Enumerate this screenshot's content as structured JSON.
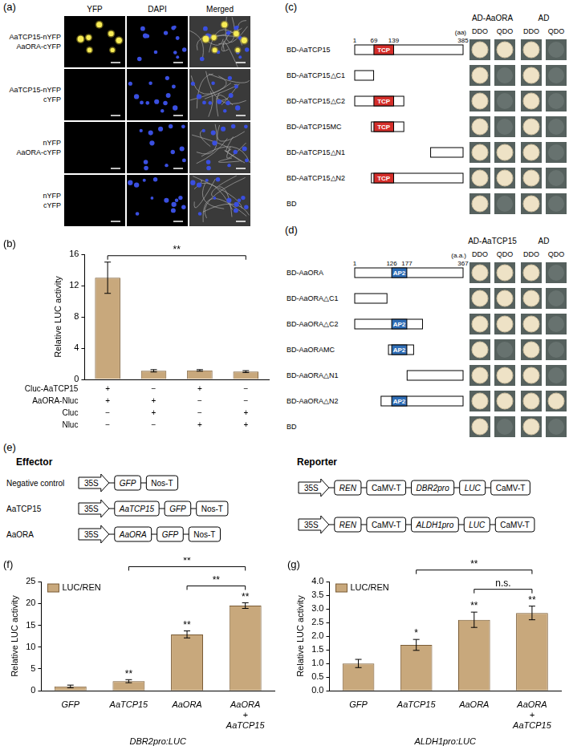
{
  "figure": {
    "panel_a": {
      "panel_label": "(a)",
      "columns": [
        "YFP",
        "DAPI",
        "Merged"
      ],
      "rows": [
        {
          "labels": [
            "AaTCP15-nYFP",
            "AaORA-cYFP"
          ],
          "yfp_signal": true
        },
        {
          "labels": [
            "AaTCP15-nYFP",
            "cYFP"
          ],
          "yfp_signal": false
        },
        {
          "labels": [
            "nYFP",
            "AaORA-cYFP"
          ],
          "yfp_signal": false
        },
        {
          "labels": [
            "nYFP",
            "cYFP"
          ],
          "yfp_signal": false
        }
      ]
    },
    "panel_c": {
      "panel_label": "(c)",
      "scale_unit": "(aa)",
      "protein_length": 385,
      "domain": {
        "name": "TCP",
        "start": 69,
        "end": 139,
        "color": "#d42e2a"
      },
      "position_labels": [
        1,
        69,
        139,
        385
      ],
      "prey_columns": [
        {
          "name": "AD-AaORA",
          "media": [
            "DDO",
            "QDO"
          ]
        },
        {
          "name": "AD",
          "media": [
            "DDO",
            "QDO"
          ]
        }
      ],
      "constructs": [
        {
          "name": "BD-AaTCP15",
          "start": 1,
          "end": 385,
          "growth": [
            true,
            true,
            true,
            false
          ]
        },
        {
          "name": "BD-AaTCP15△C1",
          "start": 1,
          "end": 68,
          "growth": [
            true,
            false,
            true,
            false
          ]
        },
        {
          "name": "BD-AaTCP15△C2",
          "start": 1,
          "end": 175,
          "growth": [
            true,
            false,
            true,
            false
          ]
        },
        {
          "name": "BD-AaTCP15MC",
          "start": 60,
          "end": 175,
          "growth": [
            true,
            false,
            true,
            false
          ]
        },
        {
          "name": "BD-AaTCP15△N1",
          "start": 270,
          "end": 385,
          "growth": [
            true,
            true,
            true,
            false
          ]
        },
        {
          "name": "BD-AaTCP15△N2",
          "start": 60,
          "end": 385,
          "growth": [
            true,
            true,
            true,
            false
          ]
        },
        {
          "name": "BD",
          "start": null,
          "end": null,
          "growth": [
            true,
            false,
            true,
            false
          ]
        }
      ]
    },
    "panel_d": {
      "panel_label": "(d)",
      "scale_unit": "(a.a.)",
      "protein_length": 367,
      "domain": {
        "name": "AP2",
        "start": 126,
        "end": 177,
        "color": "#2f6db5"
      },
      "position_labels": [
        1,
        126,
        177,
        367
      ],
      "prey_columns": [
        {
          "name": "AD-AaTCP15",
          "media": [
            "DDO",
            "QDO"
          ]
        },
        {
          "name": "AD",
          "media": [
            "DDO",
            "QDO"
          ]
        }
      ],
      "constructs": [
        {
          "name": "BD-AaORA",
          "start": 1,
          "end": 367,
          "growth": [
            true,
            true,
            true,
            false
          ]
        },
        {
          "name": "BD-AaORA△C1",
          "start": 1,
          "end": 110,
          "growth": [
            true,
            true,
            true,
            false
          ]
        },
        {
          "name": "BD-AaORA△C2",
          "start": 1,
          "end": 230,
          "growth": [
            true,
            true,
            true,
            false
          ]
        },
        {
          "name": "BD-AaORAMC",
          "start": 115,
          "end": 200,
          "growth": [
            true,
            false,
            true,
            false
          ]
        },
        {
          "name": "BD-AaORA△N1",
          "start": 178,
          "end": 367,
          "growth": [
            true,
            true,
            true,
            false
          ]
        },
        {
          "name": "BD-AaORA△N2",
          "start": 90,
          "end": 367,
          "growth": [
            true,
            true,
            true,
            true
          ]
        },
        {
          "name": "BD",
          "start": null,
          "end": null,
          "growth": [
            true,
            false,
            true,
            false
          ]
        }
      ]
    },
    "panel_e": {
      "panel_label": "(e)",
      "effector_title": "Effector",
      "reporter_title": "Reporter",
      "effectors": [
        {
          "label": "Negative control",
          "parts": [
            {
              "text": "35S",
              "kind": "arrow"
            },
            {
              "text": "GFP",
              "kind": "gene"
            },
            {
              "text": "Nos-T",
              "kind": "terminator"
            }
          ]
        },
        {
          "label": "AaTCP15",
          "parts": [
            {
              "text": "35S",
              "kind": "arrow"
            },
            {
              "text": "AaTCP15",
              "kind": "gene"
            },
            {
              "text": "GFP",
              "kind": "gene"
            },
            {
              "text": "Nos-T",
              "kind": "terminator"
            }
          ]
        },
        {
          "label": "AaORA",
          "parts": [
            {
              "text": "35S",
              "kind": "arrow"
            },
            {
              "text": "AaORA",
              "kind": "gene"
            },
            {
              "text": "GFP",
              "kind": "gene"
            },
            {
              "text": "Nos-T",
              "kind": "terminator"
            }
          ]
        }
      ],
      "reporters": [
        {
          "parts": [
            {
              "text": "35S",
              "kind": "arrow"
            },
            {
              "text": "REN",
              "kind": "gene"
            },
            {
              "text": "CaMV-T",
              "kind": "terminator"
            },
            {
              "text": "DBR2pro",
              "kind": "gene"
            },
            {
              "text": "LUC",
              "kind": "gene"
            },
            {
              "text": "CaMV-T",
              "kind": "terminator"
            }
          ]
        },
        {
          "parts": [
            {
              "text": "35S",
              "kind": "arrow"
            },
            {
              "text": "REN",
              "kind": "gene"
            },
            {
              "text": "CaMV-T",
              "kind": "terminator"
            },
            {
              "text": "ALDH1pro",
              "kind": "gene"
            },
            {
              "text": "LUC",
              "kind": "gene"
            },
            {
              "text": "CaMV-T",
              "kind": "terminator"
            }
          ]
        }
      ]
    }
  },
  "chart_data": [
    {
      "type": "bar",
      "panel_label": "(b)",
      "y_label": "Relative LUC activity",
      "categories": [
        null,
        null,
        null,
        null
      ],
      "values": [
        13.0,
        1.1,
        1.15,
        1.0
      ],
      "errors": [
        2.0,
        0.15,
        0.1,
        0.12
      ],
      "color": "#c8a87c",
      "ylim": [
        0,
        16
      ],
      "yticks": [
        0,
        4,
        8,
        12,
        16
      ],
      "grid": false,
      "tick_labels": "y",
      "brackets": [
        {
          "from": 0,
          "to": 3,
          "text": "**"
        }
      ],
      "design_table": [
        {
          "label": "Cluc-AaTCP15",
          "marks": [
            "+",
            "−",
            "+",
            "−"
          ]
        },
        {
          "label": "AaORA-Nluc",
          "marks": [
            "+",
            "+",
            "−",
            "−"
          ]
        },
        {
          "label": "Cluc",
          "marks": [
            "−",
            "+",
            "−",
            "+"
          ]
        },
        {
          "label": "Nluc",
          "marks": [
            "−",
            "−",
            "+",
            "+"
          ]
        }
      ]
    },
    {
      "type": "bar",
      "panel_label": "(f)",
      "y_label": "Relative LUC activity",
      "x_label": "DBR2pro:LUC",
      "categories": [
        "GFP",
        "AaTCP15",
        "AaORA",
        "AaORA + AaTCP15"
      ],
      "series": [
        {
          "name": "LUC/REN",
          "color": "#c8a87c",
          "values": [
            1.0,
            2.2,
            12.9,
            19.5
          ],
          "errors": [
            0.3,
            0.35,
            0.8,
            0.65
          ],
          "significance": [
            null,
            "**",
            "**",
            "**"
          ]
        }
      ],
      "ylim": [
        0,
        25
      ],
      "yticks": [
        0,
        5,
        10,
        15,
        20,
        25
      ],
      "grid": false,
      "legend": "top-left",
      "brackets": [
        {
          "from": 1,
          "to": 3,
          "text": "**"
        },
        {
          "from": 2,
          "to": 3,
          "text": "**"
        }
      ]
    },
    {
      "type": "bar",
      "panel_label": "(g)",
      "y_label": "Relative LUC activity",
      "x_label": "ALDH1pro:LUC",
      "categories": [
        "GFP",
        "AaTCP15",
        "AaORA",
        "AaORA + AaTCP15"
      ],
      "series": [
        {
          "name": "LUC/REN",
          "color": "#c8a87c",
          "values": [
            1.0,
            1.68,
            2.6,
            2.85
          ],
          "errors": [
            0.15,
            0.2,
            0.28,
            0.25
          ],
          "significance": [
            null,
            "*",
            "**",
            "**"
          ]
        }
      ],
      "ylim": [
        0,
        4
      ],
      "yticks": [
        {
          "value": 0,
          "label": "0.0"
        },
        {
          "value": 0.5,
          "label": "0.5"
        },
        {
          "value": 1,
          "label": "1.0"
        },
        {
          "value": 1.5,
          "label": "1.5"
        },
        {
          "value": 2,
          "label": "2.0"
        },
        {
          "value": 2.5,
          "label": "2.5"
        },
        {
          "value": 3,
          "label": "3.0"
        },
        {
          "value": 3.5,
          "label": "3.5"
        },
        {
          "value": 4,
          "label": "4.0"
        }
      ],
      "grid": false,
      "legend": "top-left",
      "brackets": [
        {
          "from": 1,
          "to": 3,
          "text": "**"
        },
        {
          "from": 2,
          "to": 3,
          "text": "n.s."
        }
      ]
    }
  ]
}
